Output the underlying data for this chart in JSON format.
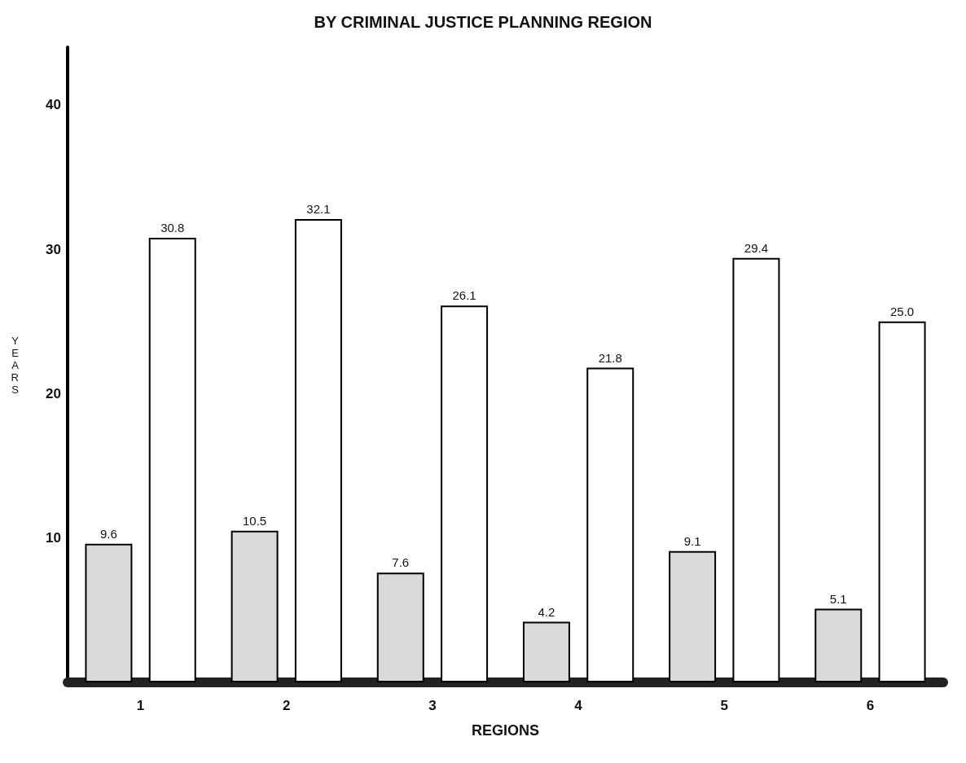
{
  "chart_data": {
    "type": "bar",
    "title": "BY CRIMINAL JUSTICE PLANNING REGION",
    "xlabel": "REGIONS",
    "ylabel": "YEARS",
    "categories": [
      "1",
      "2",
      "3",
      "4",
      "5",
      "6"
    ],
    "series": [
      {
        "color": "#d9d9d9",
        "values": [
          9.6,
          10.5,
          7.6,
          4.2,
          9.1,
          5.1
        ],
        "value_labels": [
          "9.6",
          "10.5",
          "7.6",
          "4.2",
          "9.1",
          "5.1"
        ]
      },
      {
        "color": "#ffffff",
        "values": [
          30.8,
          32.1,
          26.1,
          21.8,
          29.4,
          25.0
        ],
        "value_labels": [
          "30.8",
          "32.1",
          "26.1",
          "21.8",
          "29.4",
          "25.0"
        ]
      }
    ],
    "ylim": [
      0,
      44
    ],
    "yticks": [
      10,
      20,
      30,
      40
    ],
    "grid": false
  }
}
